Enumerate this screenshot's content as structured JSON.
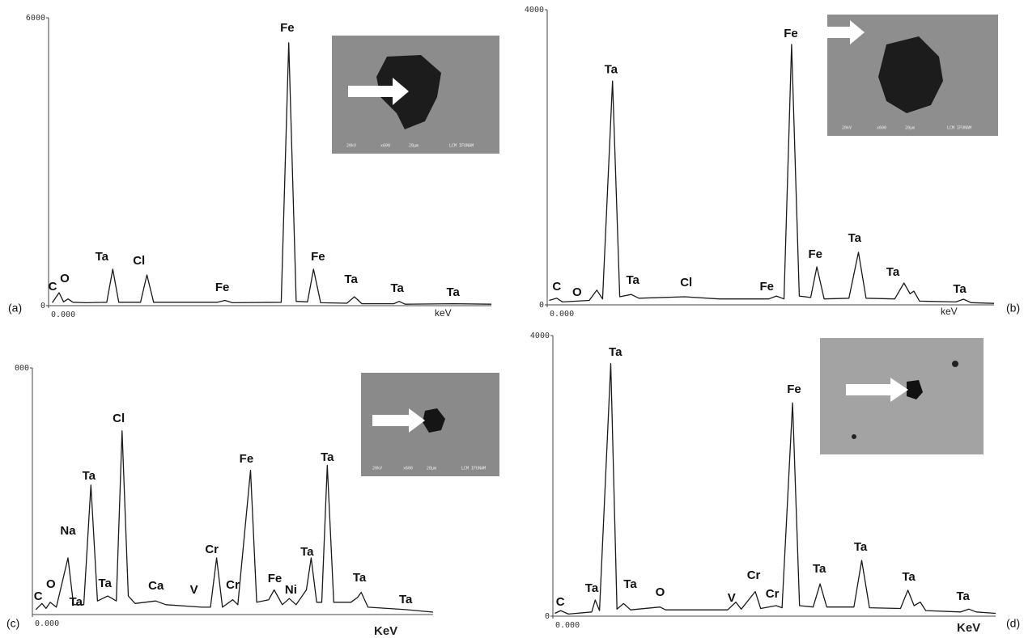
{
  "chart_data": [
    {
      "type": "line",
      "panel_label": "(a)",
      "x_label": "keV",
      "color": "#1a1a1a",
      "xlim": [
        0,
        11.8
      ],
      "ylim": [
        0,
        6000
      ],
      "xticks": [
        {
          "value": 0,
          "label": "0.000"
        }
      ],
      "yticks": [
        0,
        6000
      ],
      "x": [
        0.1,
        0.28,
        0.4,
        0.52,
        0.65,
        1.0,
        1.55,
        1.71,
        1.87,
        2.45,
        2.62,
        2.8,
        4.5,
        4.7,
        4.9,
        6.2,
        6.4,
        6.6,
        6.9,
        7.06,
        7.25,
        7.95,
        8.15,
        8.35,
        9.2,
        9.34,
        9.5,
        10.8,
        11.8
      ],
      "values": [
        60,
        270,
        80,
        140,
        70,
        60,
        70,
        760,
        70,
        70,
        640,
        70,
        70,
        110,
        60,
        70,
        5480,
        90,
        80,
        760,
        60,
        50,
        185,
        40,
        40,
        90,
        30,
        40,
        30
      ],
      "annotations": [
        {
          "text": "C",
          "x": 0.11,
          "y": 388
        },
        {
          "text": "O",
          "x": 0.43,
          "y": 556
        },
        {
          "text": "Ta",
          "x": 1.42,
          "y": 1011
        },
        {
          "text": "Cl",
          "x": 2.41,
          "y": 927
        },
        {
          "text": "Fe",
          "x": 4.63,
          "y": 371
        },
        {
          "text": "Fe",
          "x": 6.36,
          "y": 5781
        },
        {
          "text": "Fe",
          "x": 7.18,
          "y": 1011
        },
        {
          "text": "Ta",
          "x": 8.06,
          "y": 539
        },
        {
          "text": "Ta",
          "x": 9.29,
          "y": 354
        },
        {
          "text": "Ta",
          "x": 10.78,
          "y": 270
        }
      ],
      "inset_labels": [
        "20kV",
        "x600",
        "20µm",
        "LCM IFUNAM"
      ]
    },
    {
      "type": "line",
      "panel_label": "(b)",
      "x_label": "keV",
      "color": "#1a1a1a",
      "xlim": [
        0,
        11.7
      ],
      "ylim": [
        0,
        4000
      ],
      "xticks": [
        {
          "value": 0,
          "label": "0.000"
        }
      ],
      "yticks": [
        0,
        4000
      ],
      "x": [
        0.05,
        0.25,
        0.4,
        1.1,
        1.3,
        1.45,
        1.71,
        1.9,
        2.2,
        2.4,
        3.6,
        4.5,
        5.8,
        6.0,
        6.2,
        6.4,
        6.6,
        6.9,
        7.06,
        7.25,
        7.9,
        8.15,
        8.35,
        9.1,
        9.34,
        9.5,
        9.6,
        9.75,
        10.7,
        10.9,
        11.1,
        11.7
      ],
      "values": [
        60,
        90,
        40,
        60,
        200,
        80,
        3035,
        110,
        140,
        90,
        110,
        80,
        80,
        120,
        80,
        3530,
        120,
        100,
        515,
        80,
        90,
        712,
        90,
        80,
        296,
        150,
        186,
        50,
        40,
        77,
        30,
        20
      ],
      "annotations": [
        {
          "text": "C",
          "x": 0.25,
          "y": 241
        },
        {
          "text": "O",
          "x": 0.78,
          "y": 164
        },
        {
          "text": "Ta",
          "x": 1.67,
          "y": 3184
        },
        {
          "text": "Ta",
          "x": 2.24,
          "y": 329
        },
        {
          "text": "Cl",
          "x": 3.64,
          "y": 296
        },
        {
          "text": "Fe",
          "x": 5.75,
          "y": 241
        },
        {
          "text": "Fe",
          "x": 6.38,
          "y": 3671
        },
        {
          "text": "Fe",
          "x": 7.02,
          "y": 679
        },
        {
          "text": "Ta",
          "x": 8.05,
          "y": 899
        },
        {
          "text": "Ta",
          "x": 9.05,
          "y": 438
        },
        {
          "text": "Ta",
          "x": 10.8,
          "y": 208
        }
      ],
      "inset_labels": [
        "20kV",
        "x600",
        "20µm",
        "LCM IFUNAM"
      ]
    },
    {
      "type": "line",
      "panel_label": "(c)",
      "x_label": "KeV",
      "color": "#1a1a1a",
      "xlim": [
        0,
        11.7
      ],
      "ylim": [
        0,
        2000
      ],
      "xticks": [
        {
          "value": 0,
          "label": "0.000"
        }
      ],
      "yticks": [
        {
          "value": 2000,
          "label": "000"
        }
      ],
      "x": [
        0.1,
        0.28,
        0.4,
        0.52,
        0.7,
        1.04,
        1.2,
        1.5,
        1.71,
        1.9,
        2.2,
        2.45,
        2.62,
        2.8,
        3.0,
        3.6,
        3.9,
        4.95,
        5.2,
        5.38,
        5.55,
        5.85,
        6.0,
        6.37,
        6.55,
        6.9,
        7.06,
        7.3,
        7.5,
        7.7,
        8.0,
        8.14,
        8.3,
        8.45,
        8.61,
        8.8,
        9.3,
        9.5,
        9.6,
        9.8,
        10.9,
        11.7
      ],
      "values": [
        40,
        90,
        50,
        100,
        60,
        460,
        80,
        80,
        1050,
        110,
        150,
        110,
        1490,
        150,
        90,
        110,
        80,
        60,
        60,
        460,
        60,
        120,
        80,
        1170,
        100,
        120,
        200,
        80,
        130,
        80,
        200,
        460,
        100,
        100,
        1210,
        100,
        100,
        140,
        180,
        60,
        40,
        20
      ],
      "annotations": [
        {
          "text": "C",
          "x": 0.17,
          "y": 144
        },
        {
          "text": "O",
          "x": 0.54,
          "y": 242
        },
        {
          "text": "Na",
          "x": 1.04,
          "y": 675
        },
        {
          "text": "Ta",
          "x": 1.27,
          "y": 98
        },
        {
          "text": "Ta",
          "x": 1.65,
          "y": 1121
        },
        {
          "text": "Ta",
          "x": 2.12,
          "y": 249
        },
        {
          "text": "Cl",
          "x": 2.52,
          "y": 1587
        },
        {
          "text": "Ca",
          "x": 3.61,
          "y": 229
        },
        {
          "text": "V",
          "x": 4.72,
          "y": 197
        },
        {
          "text": "Cr",
          "x": 5.24,
          "y": 525
        },
        {
          "text": "Cr",
          "x": 5.85,
          "y": 236
        },
        {
          "text": "Fe",
          "x": 6.25,
          "y": 1259
        },
        {
          "text": "Fe",
          "x": 7.08,
          "y": 289
        },
        {
          "text": "Ni",
          "x": 7.55,
          "y": 197
        },
        {
          "text": "Ta",
          "x": 8.02,
          "y": 505
        },
        {
          "text": "Ta",
          "x": 8.61,
          "y": 1272
        },
        {
          "text": "Ta",
          "x": 9.55,
          "y": 295
        },
        {
          "text": "Ta",
          "x": 10.9,
          "y": 118
        }
      ],
      "inset_labels": [
        "20kV",
        "x600",
        "20µm",
        "LCM IFUNAM"
      ]
    },
    {
      "type": "line",
      "panel_label": "(d)",
      "x_label": "KeV",
      "color": "#1a1a1a",
      "xlim": [
        0,
        11.4
      ],
      "ylim": [
        0,
        4000
      ],
      "xticks": [
        {
          "value": 0,
          "label": "0.000"
        }
      ],
      "yticks": [
        0,
        4000
      ],
      "x": [
        0.05,
        0.2,
        0.4,
        1.0,
        1.09,
        1.2,
        1.49,
        1.65,
        1.82,
        2.0,
        2.76,
        2.9,
        4.5,
        4.71,
        4.85,
        5.21,
        5.35,
        5.75,
        5.9,
        6.17,
        6.35,
        6.7,
        6.88,
        7.05,
        7.75,
        7.95,
        8.15,
        8.95,
        9.14,
        9.3,
        9.46,
        9.6,
        10.5,
        10.71,
        10.9,
        11.4
      ],
      "values": [
        40,
        80,
        30,
        60,
        230,
        80,
        3600,
        100,
        180,
        90,
        130,
        90,
        90,
        200,
        100,
        350,
        110,
        150,
        120,
        3040,
        150,
        130,
        460,
        130,
        130,
        795,
        120,
        110,
        370,
        150,
        200,
        80,
        60,
        100,
        60,
        40
      ],
      "annotations": [
        {
          "text": "C",
          "x": 0.19,
          "y": 196
        },
        {
          "text": "Ta",
          "x": 1.0,
          "y": 392
        },
        {
          "text": "Ta",
          "x": 1.61,
          "y": 3758
        },
        {
          "text": "Ta",
          "x": 1.99,
          "y": 450
        },
        {
          "text": "O",
          "x": 2.76,
          "y": 334
        },
        {
          "text": "V",
          "x": 4.6,
          "y": 254
        },
        {
          "text": "Cr",
          "x": 5.17,
          "y": 576
        },
        {
          "text": "Cr",
          "x": 5.65,
          "y": 311
        },
        {
          "text": "Fe",
          "x": 6.21,
          "y": 3228
        },
        {
          "text": "Ta",
          "x": 6.86,
          "y": 669
        },
        {
          "text": "Ta",
          "x": 7.92,
          "y": 980
        },
        {
          "text": "Ta",
          "x": 9.16,
          "y": 553
        },
        {
          "text": "Ta",
          "x": 10.56,
          "y": 277
        }
      ]
    }
  ]
}
